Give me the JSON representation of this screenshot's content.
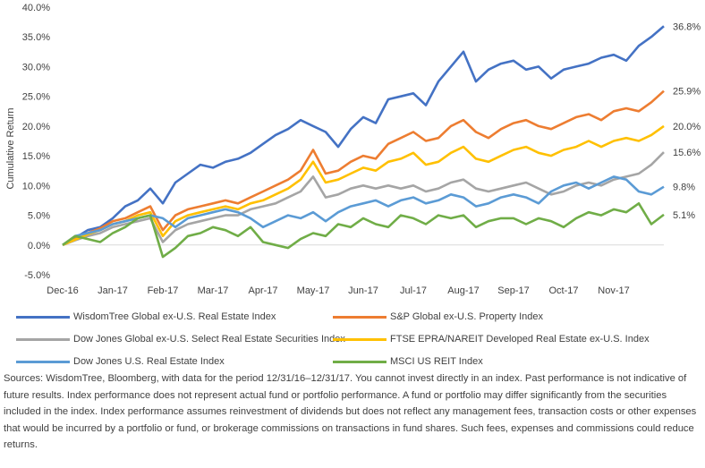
{
  "chart_data": {
    "type": "line",
    "ylabel": "Cumulative Return",
    "ylim": [
      -5,
      40
    ],
    "y_ticks": [
      "-5.0%",
      "0.0%",
      "5.0%",
      "10.0%",
      "15.0%",
      "20.0%",
      "25.0%",
      "30.0%",
      "35.0%",
      "40.0%"
    ],
    "categories": [
      "Dec-16",
      "Jan-17",
      "Feb-17",
      "Mar-17",
      "Apr-17",
      "May-17",
      "Jun-17",
      "Jul-17",
      "Aug-17",
      "Sep-17",
      "Oct-17",
      "Nov-17"
    ],
    "grid": false,
    "legend_position": "bottom",
    "series": [
      {
        "name": "WisdomTree Global ex-U.S. Real Estate Index",
        "color": "#4472C4",
        "end_label": "36.8%",
        "x": [
          0,
          0.25,
          0.5,
          0.75,
          1.0,
          1.25,
          1.5,
          1.75,
          2.0,
          2.25,
          2.5,
          2.75,
          3.0,
          3.25,
          3.5,
          3.75,
          4.0,
          4.25,
          4.5,
          4.75,
          5.0,
          5.25,
          5.5,
          5.75,
          6.0,
          6.25,
          6.5,
          6.75,
          7.0,
          7.25,
          7.5,
          7.75,
          8.0,
          8.25,
          8.5,
          8.75,
          9.0,
          9.25,
          9.5,
          9.75,
          10.0,
          10.25,
          10.5,
          10.75,
          11.0,
          11.25,
          11.5,
          11.75,
          12.0
        ],
        "values": [
          0,
          1.2,
          2.5,
          3.0,
          4.5,
          6.5,
          7.5,
          9.5,
          7.0,
          10.5,
          12.0,
          13.5,
          13.0,
          14.0,
          14.5,
          15.5,
          17.0,
          18.5,
          19.5,
          21.0,
          20.0,
          19.0,
          16.5,
          19.5,
          21.5,
          20.5,
          24.5,
          25.0,
          25.5,
          23.5,
          27.5,
          30.0,
          32.5,
          27.5,
          29.5,
          30.5,
          31.0,
          29.5,
          30.0,
          28.0,
          29.5,
          30.0,
          30.5,
          31.5,
          32.0,
          31.0,
          33.5,
          35.0,
          36.8
        ]
      },
      {
        "name": "S&P Global ex-U.S. Property Index",
        "color": "#ED7D31",
        "end_label": "25.9%",
        "x": [
          0,
          0.25,
          0.5,
          0.75,
          1.0,
          1.25,
          1.5,
          1.75,
          2.0,
          2.25,
          2.5,
          2.75,
          3.0,
          3.25,
          3.5,
          3.75,
          4.0,
          4.25,
          4.5,
          4.75,
          5.0,
          5.25,
          5.5,
          5.75,
          6.0,
          6.25,
          6.5,
          6.75,
          7.0,
          7.25,
          7.5,
          7.75,
          8.0,
          8.25,
          8.5,
          8.75,
          9.0,
          9.25,
          9.5,
          9.75,
          10.0,
          10.25,
          10.5,
          10.75,
          11.0,
          11.25,
          11.5,
          11.75,
          12.0
        ],
        "values": [
          0,
          1.0,
          2.0,
          2.8,
          4.0,
          4.5,
          5.5,
          6.5,
          2.5,
          5.0,
          6.0,
          6.5,
          7.0,
          7.5,
          7.0,
          8.0,
          9.0,
          10.0,
          11.0,
          12.5,
          16.0,
          12.0,
          12.5,
          14.0,
          15.0,
          14.5,
          17.0,
          18.0,
          19.0,
          17.5,
          18.0,
          20.0,
          21.0,
          19.0,
          18.0,
          19.5,
          20.5,
          21.0,
          20.0,
          19.5,
          20.5,
          21.5,
          22.0,
          21.0,
          22.5,
          23.0,
          22.5,
          24.0,
          25.9
        ]
      },
      {
        "name": "Dow Jones Global ex-U.S. Select Real Estate Securities Index",
        "color": "#A5A5A5",
        "end_label": "15.6%",
        "x": [
          0,
          0.25,
          0.5,
          0.75,
          1.0,
          1.25,
          1.5,
          1.75,
          2.0,
          2.25,
          2.5,
          2.75,
          3.0,
          3.25,
          3.5,
          3.75,
          4.0,
          4.25,
          4.5,
          4.75,
          5.0,
          5.25,
          5.5,
          5.75,
          6.0,
          6.25,
          6.5,
          6.75,
          7.0,
          7.25,
          7.5,
          7.75,
          8.0,
          8.25,
          8.5,
          8.75,
          9.0,
          9.25,
          9.5,
          9.75,
          10.0,
          10.25,
          10.5,
          10.75,
          11.0,
          11.25,
          11.5,
          11.75,
          12.0
        ],
        "values": [
          0,
          0.8,
          1.5,
          2.0,
          3.0,
          3.5,
          4.0,
          4.5,
          0.5,
          2.5,
          3.5,
          4.0,
          4.5,
          5.0,
          5.0,
          6.0,
          6.5,
          7.0,
          8.0,
          9.0,
          11.5,
          8.0,
          8.5,
          9.5,
          10.0,
          9.5,
          10.0,
          9.5,
          10.0,
          9.0,
          9.5,
          10.5,
          11.0,
          9.5,
          9.0,
          9.5,
          10.0,
          10.5,
          9.5,
          8.5,
          9.0,
          10.0,
          10.5,
          10.0,
          11.0,
          11.5,
          12.0,
          13.5,
          15.6
        ]
      },
      {
        "name": "FTSE EPRA/NAREIT Developed Real Estate ex-U.S. Index",
        "color": "#FFC000",
        "end_label": "20.0%",
        "x": [
          0,
          0.25,
          0.5,
          0.75,
          1.0,
          1.25,
          1.5,
          1.75,
          2.0,
          2.25,
          2.5,
          2.75,
          3.0,
          3.25,
          3.5,
          3.75,
          4.0,
          4.25,
          4.5,
          4.75,
          5.0,
          5.25,
          5.5,
          5.75,
          6.0,
          6.25,
          6.5,
          6.75,
          7.0,
          7.25,
          7.5,
          7.75,
          8.0,
          8.25,
          8.5,
          8.75,
          9.0,
          9.25,
          9.5,
          9.75,
          10.0,
          10.25,
          10.5,
          10.75,
          11.0,
          11.25,
          11.5,
          11.75,
          12.0
        ],
        "values": [
          0,
          0.9,
          1.8,
          2.5,
          3.5,
          4.0,
          5.0,
          5.5,
          1.5,
          4.0,
          5.0,
          5.5,
          6.0,
          6.5,
          6.0,
          7.0,
          7.5,
          8.5,
          9.5,
          11.0,
          14.0,
          10.5,
          11.0,
          12.0,
          13.0,
          12.5,
          14.0,
          14.5,
          15.5,
          13.5,
          14.0,
          15.5,
          16.5,
          14.5,
          14.0,
          15.0,
          16.0,
          16.5,
          15.5,
          15.0,
          16.0,
          16.5,
          17.5,
          16.5,
          17.5,
          18.0,
          17.5,
          18.5,
          20.0
        ]
      },
      {
        "name": "Dow Jones U.S. Real Estate Index",
        "color": "#5B9BD5",
        "end_label": "9.8%",
        "x": [
          0,
          0.25,
          0.5,
          0.75,
          1.0,
          1.25,
          1.5,
          1.75,
          2.0,
          2.25,
          2.5,
          2.75,
          3.0,
          3.25,
          3.5,
          3.75,
          4.0,
          4.25,
          4.5,
          4.75,
          5.0,
          5.25,
          5.5,
          5.75,
          6.0,
          6.25,
          6.5,
          6.75,
          7.0,
          7.25,
          7.5,
          7.75,
          8.0,
          8.25,
          8.5,
          8.75,
          9.0,
          9.25,
          9.5,
          9.75,
          10.0,
          10.25,
          10.5,
          10.75,
          11.0,
          11.25,
          11.5,
          11.75,
          12.0
        ],
        "values": [
          0,
          1.5,
          2.0,
          2.5,
          3.5,
          4.0,
          4.5,
          5.0,
          4.5,
          3.0,
          4.5,
          5.0,
          5.5,
          6.0,
          5.5,
          4.5,
          3.0,
          4.0,
          5.0,
          4.5,
          5.5,
          4.0,
          5.5,
          6.5,
          7.0,
          7.5,
          6.5,
          7.5,
          8.0,
          7.0,
          7.5,
          8.5,
          8.0,
          6.5,
          7.0,
          8.0,
          8.5,
          8.0,
          7.0,
          9.0,
          10.0,
          10.5,
          9.5,
          10.5,
          11.5,
          11.0,
          9.0,
          8.5,
          9.8
        ]
      },
      {
        "name": "MSCI US REIT Index",
        "color": "#70AD47",
        "end_label": "5.1%",
        "x": [
          0,
          0.25,
          0.5,
          0.75,
          1.0,
          1.25,
          1.5,
          1.75,
          2.0,
          2.25,
          2.5,
          2.75,
          3.0,
          3.25,
          3.5,
          3.75,
          4.0,
          4.25,
          4.5,
          4.75,
          5.0,
          5.25,
          5.5,
          5.75,
          6.0,
          6.25,
          6.5,
          6.75,
          7.0,
          7.25,
          7.5,
          7.75,
          8.0,
          8.25,
          8.5,
          8.75,
          9.0,
          9.25,
          9.5,
          9.75,
          10.0,
          10.25,
          10.5,
          10.75,
          11.0,
          11.25,
          11.5,
          11.75,
          12.0
        ],
        "values": [
          0,
          1.5,
          1.0,
          0.5,
          2.0,
          3.0,
          4.5,
          5.0,
          -2.0,
          -0.5,
          1.5,
          2.0,
          3.0,
          2.5,
          1.5,
          3.0,
          0.5,
          0.0,
          -0.5,
          1.0,
          2.0,
          1.5,
          3.5,
          3.0,
          4.5,
          3.5,
          3.0,
          5.0,
          4.5,
          3.5,
          5.0,
          4.5,
          5.0,
          3.0,
          4.0,
          4.5,
          4.5,
          3.5,
          4.5,
          4.0,
          3.0,
          4.5,
          5.5,
          5.0,
          6.0,
          5.5,
          7.0,
          3.5,
          5.1
        ]
      }
    ]
  },
  "footnote": "Sources: WisdomTree, Bloomberg, with data for the period 12/31/16–12/31/17. You cannot invest directly in an index. Past performance is not indicative of future results. Index performance does not represent actual fund or portfolio performance. A fund or portfolio may differ significantly from the securities included in the index. Index performance assumes reinvestment of dividends but does not reflect any management fees, transaction costs or other expenses that would be incurred by a portfolio or fund, or brokerage commissions on transactions in fund shares. Such fees, expenses and commissions could reduce returns."
}
